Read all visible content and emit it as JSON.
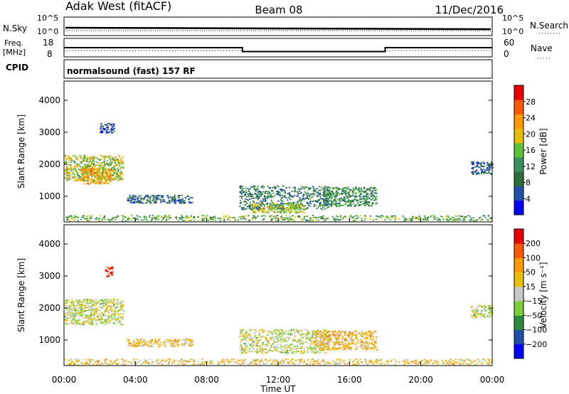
{
  "header": {
    "title": "Adak West (fitACF)",
    "beam": "Beam 08",
    "date": "11/Dec/2016"
  },
  "top_panels": {
    "nsky_label": "N.Sky",
    "nsky_ticks": [
      "10^5",
      "10^0"
    ],
    "nsky_right_ticks": [
      "10^5",
      "10^0"
    ],
    "nsearch_label": "N.Search",
    "freq_label_line1": "Freq.",
    "freq_label_line2": "[MHz]",
    "freq_ticks": [
      "18",
      "8"
    ],
    "nave_ticks": [
      "60",
      "0"
    ],
    "nave_label": "Nave",
    "cpid_label": "CPID",
    "cpid_text": "normalsound (fast) 157 RF"
  },
  "x_axis": {
    "label": "Time UT",
    "ticks": [
      "00:00",
      "04:00",
      "08:00",
      "12:00",
      "16:00",
      "20:00",
      "00:00"
    ]
  },
  "chart_data": [
    {
      "type": "heatmap",
      "name": "power",
      "ylabel": "Slant Range [km]",
      "yticks": [
        1000,
        2000,
        3000,
        4000
      ],
      "ylim": [
        200,
        4600
      ],
      "xlim_hours": [
        0,
        24
      ],
      "colorbar_label": "Power [dB]",
      "colorbar_ticks": [
        "28",
        "24",
        "20",
        "16",
        "12",
        "8",
        "4"
      ],
      "colors": [
        "#0000ff",
        "#1f4fa8",
        "#2e6e3a",
        "#3a8f5c",
        "#5cc23a",
        "#e8c000",
        "#ff9a00",
        "#ff5a00",
        "#e60000"
      ],
      "regions": [
        {
          "t0": 0.0,
          "t1": 3.3,
          "r0": 1500,
          "r1": 2300,
          "level": 0.55
        },
        {
          "t0": 1.0,
          "t1": 2.6,
          "r0": 1400,
          "r1": 1900,
          "level": 0.7
        },
        {
          "t0": 2.0,
          "t1": 2.8,
          "r0": 3000,
          "r1": 3300,
          "level": 0.15
        },
        {
          "t0": 3.5,
          "t1": 7.2,
          "r0": 800,
          "r1": 1050,
          "level": 0.25
        },
        {
          "t0": 9.8,
          "t1": 14.8,
          "r0": 600,
          "r1": 1350,
          "level": 0.3
        },
        {
          "t0": 10.5,
          "t1": 13.5,
          "r0": 500,
          "r1": 800,
          "level": 0.55
        },
        {
          "t0": 14.5,
          "t1": 17.5,
          "r0": 700,
          "r1": 1300,
          "level": 0.35
        },
        {
          "t0": 0.0,
          "t1": 24.0,
          "r0": 250,
          "r1": 420,
          "level": 0.45
        },
        {
          "t0": 22.8,
          "t1": 24.0,
          "r0": 1700,
          "r1": 2100,
          "level": 0.2
        }
      ]
    },
    {
      "type": "heatmap",
      "name": "velocity",
      "ylabel": "Slant Range [km]",
      "yticks": [
        1000,
        2000,
        3000,
        4000
      ],
      "ylim": [
        200,
        4600
      ],
      "xlim_hours": [
        0,
        24
      ],
      "colorbar_label": "Velocity [m s⁻¹]",
      "colorbar_ticks": [
        "200",
        "100",
        "50",
        "15",
        "−15",
        "−50",
        "−100",
        "−200"
      ],
      "colors": [
        "#0000ff",
        "#1f4fa8",
        "#2e8a3a",
        "#7ecf3a",
        "#c8c8c8",
        "#e8c000",
        "#ff9a00",
        "#ff5a00",
        "#e60000"
      ],
      "regions": [
        {
          "t0": 0.0,
          "t1": 3.3,
          "r0": 1500,
          "r1": 2300,
          "level": 0.5
        },
        {
          "t0": 2.3,
          "t1": 2.7,
          "r0": 3000,
          "r1": 3300,
          "level": 0.95
        },
        {
          "t0": 3.5,
          "t1": 7.2,
          "r0": 800,
          "r1": 1050,
          "level": 0.62
        },
        {
          "t0": 9.8,
          "t1": 14.8,
          "r0": 600,
          "r1": 1350,
          "level": 0.5
        },
        {
          "t0": 14.0,
          "t1": 17.5,
          "r0": 700,
          "r1": 1300,
          "level": 0.62
        },
        {
          "t0": 0.0,
          "t1": 24.0,
          "r0": 250,
          "r1": 420,
          "level": 0.6
        },
        {
          "t0": 22.8,
          "t1": 24.0,
          "r0": 1700,
          "r1": 2100,
          "level": 0.5
        }
      ]
    }
  ],
  "freq_series": [
    {
      "t0": 0.0,
      "t1": 10.0,
      "mhz": 13.0
    },
    {
      "t0": 10.0,
      "t1": 18.0,
      "mhz": 10.5
    },
    {
      "t0": 18.0,
      "t1": 24.0,
      "mhz": 13.0
    }
  ],
  "nave_series": [
    {
      "t0": 0.0,
      "t1": 10.0,
      "value": 18
    },
    {
      "t0": 10.0,
      "t1": 18.0,
      "value": 15
    },
    {
      "t0": 18.0,
      "t1": 24.0,
      "value": 18
    }
  ]
}
